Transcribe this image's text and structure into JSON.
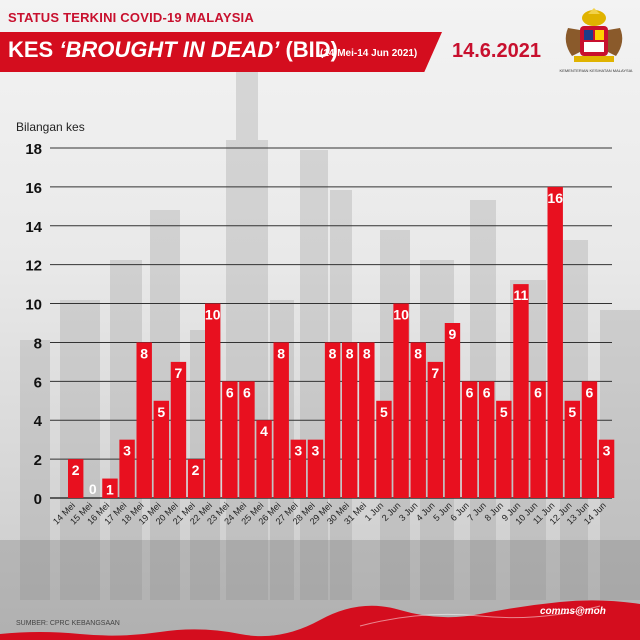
{
  "header": {
    "status": "STATUS TERKINI COVID-19 MALAYSIA",
    "title_part1": "KES ",
    "title_italic": "‘BROUGHT IN DEAD’",
    "title_part2": " (BID)",
    "range": "(14 Mei-14 Jun 2021)",
    "date": "14.6.2021",
    "crest_caption": "KEMENTERIAN KESIHATAN MALAYSIA"
  },
  "footer": {
    "source": "SUMBER: CPRC KEBANGSAAN",
    "brand": "comms@moh"
  },
  "colors": {
    "bar": "#e8101f",
    "brand_red": "#c8102e",
    "grid": "#333333"
  },
  "chart_data": {
    "type": "bar",
    "ylabel": "Bilangan kes",
    "xlabel": "",
    "ylim": [
      0,
      18
    ],
    "yticks": [
      0,
      2,
      4,
      6,
      8,
      10,
      12,
      14,
      16,
      18
    ],
    "grid": true,
    "categories": [
      "14 Mei",
      "15 Mei",
      "16 Mei",
      "17 Mei",
      "18 Mei",
      "19 Mei",
      "20 Mei",
      "21 Mei",
      "22 Mei",
      "23 Mei",
      "24 Mei",
      "25 Mei",
      "26 Mei",
      "27 Mei",
      "28 Mei",
      "29 Mei",
      "30 Mei",
      "31 Mei",
      "1 Jun",
      "2 Jun",
      "3 Jun",
      "4 Jun",
      "5 Jun",
      "6 Jun",
      "7 Jun",
      "8 Jun",
      "9 Jun",
      "10 Jun",
      "11 Jun",
      "12 Jun",
      "13 Jun",
      "14 Jun"
    ],
    "values": [
      2,
      0,
      1,
      3,
      8,
      5,
      7,
      2,
      10,
      6,
      6,
      4,
      8,
      3,
      3,
      8,
      8,
      8,
      5,
      10,
      8,
      7,
      9,
      6,
      6,
      5,
      11,
      6,
      16,
      5,
      6,
      3
    ]
  }
}
